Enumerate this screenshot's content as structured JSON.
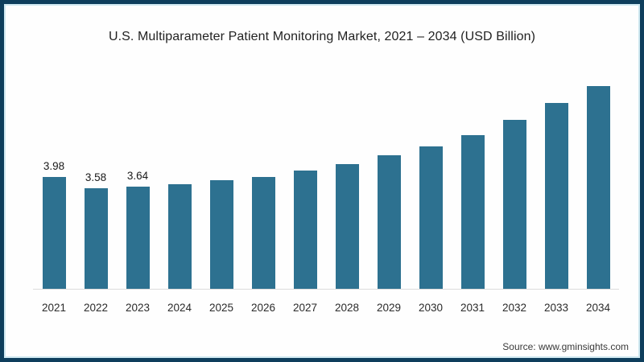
{
  "chart": {
    "title": "U.S. Multiparameter Patient Monitoring Market, 2021 – 2034 (USD Billion)",
    "source": "Source: www.gminsights.com"
  },
  "colors": {
    "bar": "#2d7190",
    "outer_border": "#0e3e5c",
    "inner_border": "#cfe8f1",
    "axis_line": "#dcdcdc",
    "background": "#fefefe",
    "text": "#222222"
  },
  "chart_data": {
    "type": "bar",
    "title": "U.S. Multiparameter Patient Monitoring Market, 2021 – 2034 (USD Billion)",
    "categories": [
      "2021",
      "2022",
      "2023",
      "2024",
      "2025",
      "2026",
      "2027",
      "2028",
      "2029",
      "2030",
      "2031",
      "2032",
      "2033",
      "2034"
    ],
    "values": [
      3.98,
      3.58,
      3.64,
      3.72,
      3.85,
      3.98,
      4.2,
      4.42,
      4.73,
      5.05,
      5.47,
      6.0,
      6.6,
      7.2
    ],
    "data_labels": [
      "3.98",
      "3.58",
      "3.64",
      "",
      "",
      "",
      "",
      "",
      "",
      "",
      "",
      "",
      "",
      ""
    ],
    "xlabel": "",
    "ylabel": "",
    "ylim": [
      0,
      8
    ],
    "grid": false,
    "legend": false,
    "bar_color": "#2d7190",
    "source": "Source: www.gminsights.com"
  }
}
